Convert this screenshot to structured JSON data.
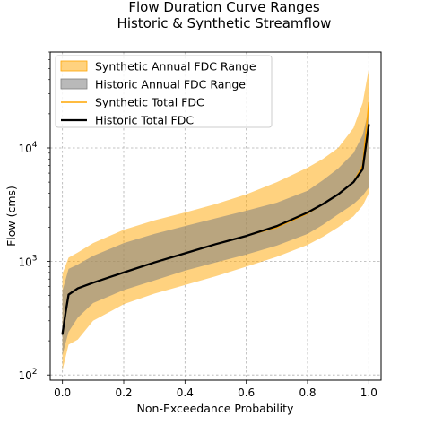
{
  "chart_data": {
    "type": "area",
    "title": [
      "Flow Duration Curve Ranges",
      "Historic & Synthetic Streamflow"
    ],
    "xlabel": "Non-Exceedance Probability",
    "ylabel": "Flow (cms)",
    "xlim": [
      -0.04,
      1.04
    ],
    "ylim": [
      90,
      70000
    ],
    "yscale": "log",
    "grid": true,
    "legend_position": "upper-left",
    "xticks": [
      {
        "value": 0.0,
        "label": "0.0"
      },
      {
        "value": 0.2,
        "label": "0.2"
      },
      {
        "value": 0.4,
        "label": "0.4"
      },
      {
        "value": 0.6,
        "label": "0.6"
      },
      {
        "value": 0.8,
        "label": "0.8"
      },
      {
        "value": 1.0,
        "label": "1.0"
      }
    ],
    "yticks": [
      {
        "value": 100,
        "base": "10",
        "exp": "2"
      },
      {
        "value": 1000,
        "base": "10",
        "exp": "3"
      },
      {
        "value": 10000,
        "base": "10",
        "exp": "4"
      }
    ],
    "series": [
      {
        "name": "Synthetic Annual FDC Range",
        "kind": "band",
        "color": "#ffa500",
        "opacity": 0.5,
        "x": [
          0.0,
          0.02,
          0.05,
          0.1,
          0.2,
          0.3,
          0.4,
          0.5,
          0.6,
          0.7,
          0.8,
          0.85,
          0.9,
          0.95,
          0.98,
          1.0
        ],
        "lower": [
          110,
          185,
          205,
          300,
          420,
          520,
          620,
          740,
          900,
          1100,
          1400,
          1650,
          2000,
          2500,
          3100,
          4000
        ],
        "upper": [
          780,
          1080,
          1200,
          1450,
          1900,
          2300,
          2700,
          3200,
          3900,
          5000,
          6700,
          8000,
          10000,
          15000,
          25000,
          50000
        ]
      },
      {
        "name": "Historic Annual FDC Range",
        "kind": "band",
        "color": "#808080",
        "opacity": 0.55,
        "x": [
          0.0,
          0.02,
          0.05,
          0.1,
          0.2,
          0.3,
          0.4,
          0.5,
          0.6,
          0.7,
          0.8,
          0.85,
          0.9,
          0.95,
          0.98,
          1.0
        ],
        "lower": [
          150,
          240,
          320,
          430,
          560,
          680,
          830,
          980,
          1150,
          1380,
          1750,
          2100,
          2600,
          3200,
          3800,
          4500
        ],
        "upper": [
          550,
          860,
          940,
          1120,
          1450,
          1750,
          2050,
          2400,
          2800,
          3300,
          4200,
          5200,
          6600,
          9000,
          13000,
          22000
        ]
      },
      {
        "name": "Synthetic Total FDC",
        "kind": "line",
        "color": "#ffa500",
        "width": 1.5,
        "x": [
          0.0,
          0.02,
          0.05,
          0.1,
          0.2,
          0.3,
          0.4,
          0.5,
          0.6,
          0.7,
          0.8,
          0.85,
          0.9,
          0.95,
          0.98,
          1.0
        ],
        "y": [
          230,
          510,
          580,
          650,
          800,
          980,
          1180,
          1420,
          1680,
          2000,
          2650,
          3200,
          3900,
          5000,
          7000,
          25000
        ]
      },
      {
        "name": "Historic Total FDC",
        "kind": "line",
        "color": "#000000",
        "width": 2.3,
        "x": [
          0.0,
          0.01,
          0.02,
          0.05,
          0.1,
          0.2,
          0.3,
          0.4,
          0.5,
          0.6,
          0.7,
          0.8,
          0.85,
          0.9,
          0.95,
          0.98,
          1.0
        ],
        "y": [
          230,
          350,
          510,
          580,
          650,
          800,
          980,
          1180,
          1420,
          1680,
          2050,
          2700,
          3200,
          3900,
          5000,
          6500,
          16000
        ]
      }
    ]
  }
}
